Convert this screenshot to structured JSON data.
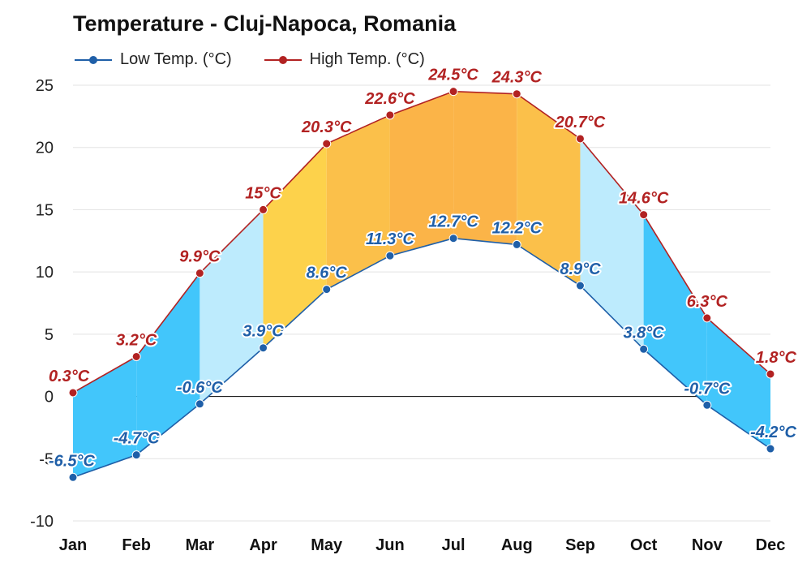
{
  "chart_data": {
    "type": "area",
    "title": "Temperature - Cluj-Napoca, Romania",
    "categories": [
      "Jan",
      "Feb",
      "Mar",
      "Apr",
      "May",
      "Jun",
      "Jul",
      "Aug",
      "Sep",
      "Oct",
      "Nov",
      "Dec"
    ],
    "series": [
      {
        "name": "Low Temp. (°C)",
        "color": "#1f5fa8",
        "values": [
          -6.5,
          -4.7,
          -0.6,
          3.9,
          8.6,
          11.3,
          12.7,
          12.2,
          8.9,
          3.8,
          -0.7,
          -4.2
        ],
        "labels": [
          "-6.5°C",
          "-4.7°C",
          "-0.6°C",
          "3.9°C",
          "8.6°C",
          "11.3°C",
          "12.7°C",
          "12.2°C",
          "8.9°C",
          "3.8°C",
          "-0.7°C",
          "-4.2°C"
        ]
      },
      {
        "name": "High Temp. (°C)",
        "color": "#b22222",
        "values": [
          0.3,
          3.2,
          9.9,
          15,
          20.3,
          22.6,
          24.5,
          24.3,
          20.7,
          14.6,
          6.3,
          1.8
        ],
        "labels": [
          "0.3°C",
          "3.2°C",
          "9.9°C",
          "15°C",
          "20.3°C",
          "22.6°C",
          "24.5°C",
          "24.3°C",
          "20.7°C",
          "14.6°C",
          "6.3°C",
          "1.8°C"
        ]
      }
    ],
    "band_colors": [
      "#42c6fb",
      "#42c6fb",
      "#bdebfd",
      "#fdd24b",
      "#fbc04a",
      "#fbb448",
      "#fbb448",
      "#fbc04a",
      "#bdebfd",
      "#42c6fb",
      "#42c6fb"
    ],
    "yticks": [
      "25",
      "20",
      "15",
      "10",
      "5",
      "0",
      "-5",
      "-10"
    ],
    "ylim": [
      -10,
      25
    ],
    "grid": true,
    "legend": "top-left"
  }
}
